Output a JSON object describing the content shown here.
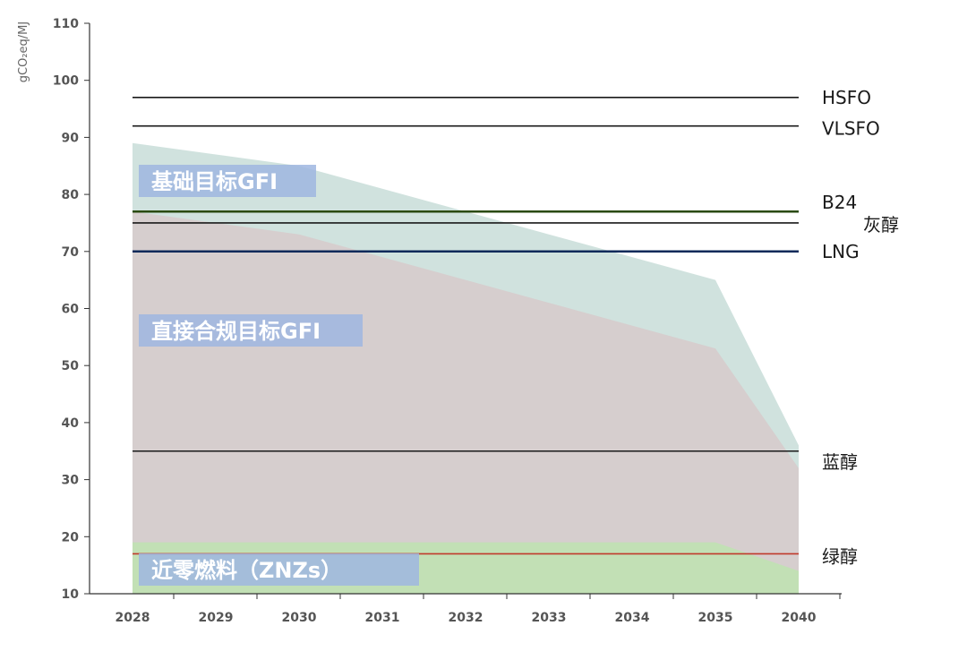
{
  "chart_data": {
    "type": "area",
    "ylabel": "gCO₂eq/MJ",
    "ylim": [
      10,
      110
    ],
    "y_ticks": [
      10,
      20,
      30,
      40,
      50,
      60,
      70,
      80,
      90,
      100,
      110
    ],
    "categories": [
      "2028",
      "2029",
      "2030",
      "2031",
      "2032",
      "2033",
      "2034",
      "2035",
      "2040"
    ],
    "grid": false,
    "series": [
      {
        "name": "基础目标GFI",
        "values": [
          89,
          87,
          85,
          81,
          77,
          73,
          69,
          65,
          36
        ],
        "color": "#c8ddd8"
      },
      {
        "name": "直接合规目标GFI",
        "values": [
          77,
          75,
          73,
          69,
          65,
          61,
          57,
          53,
          32
        ],
        "color": "#d7cacb"
      },
      {
        "name": "近零燃料（ZNZs）",
        "values": [
          19,
          19,
          19,
          19,
          19,
          19,
          19,
          19,
          14
        ],
        "color": "#c1e0b3"
      }
    ],
    "reference_lines": [
      {
        "key": "hsfo",
        "label": "HSFO",
        "value": 97,
        "color": "#1a1a1a"
      },
      {
        "key": "vlsfo",
        "label": "VLSFO",
        "value": 92,
        "color": "#1a1a1a"
      },
      {
        "key": "b24",
        "label": "B24",
        "value": 77,
        "color": "#2a4a10"
      },
      {
        "key": "grey",
        "label": "灰醇",
        "value": 75,
        "color": "#1a1a1a"
      },
      {
        "key": "lng",
        "label": "LNG",
        "value": 70,
        "color": "#0e2a5a"
      },
      {
        "key": "blue",
        "label": "蓝醇",
        "value": 35,
        "color": "#1a1a1a"
      },
      {
        "key": "green",
        "label": "绿醇",
        "value": 17,
        "color": "#c0392b"
      }
    ]
  }
}
